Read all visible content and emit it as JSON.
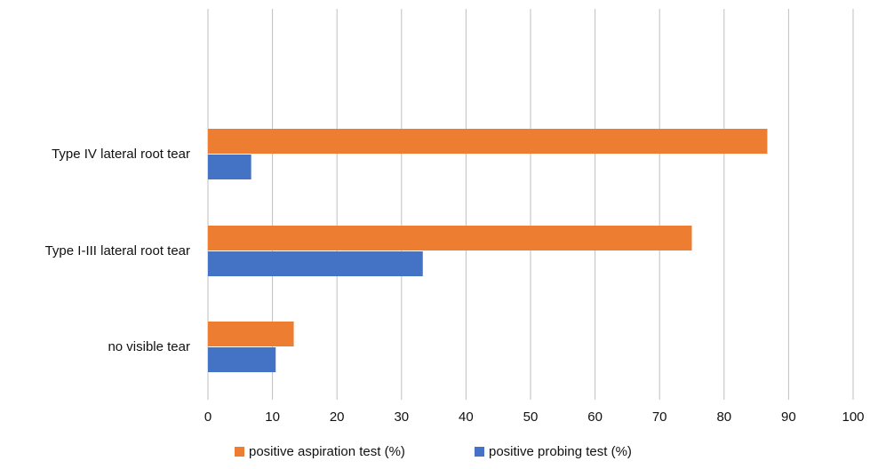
{
  "chart_data": {
    "type": "bar",
    "orientation": "horizontal",
    "categories": [
      "Type IV lateral root tear",
      "Type I-III lateral root tear",
      "no visible tear"
    ],
    "series": [
      {
        "name": "positive aspiration test (%)",
        "color": "#ED7D31",
        "values": [
          86.7,
          75.0,
          13.3
        ]
      },
      {
        "name": "positive probing test (%)",
        "color": "#4472C4",
        "values": [
          6.7,
          33.3,
          10.5
        ]
      }
    ],
    "xlim": [
      0,
      100
    ],
    "x_ticks": [
      0,
      10,
      20,
      30,
      40,
      50,
      60,
      70,
      80,
      90,
      100
    ],
    "title": "",
    "xlabel": "",
    "ylabel": "",
    "grid": "vertical",
    "legend_position": "bottom"
  }
}
